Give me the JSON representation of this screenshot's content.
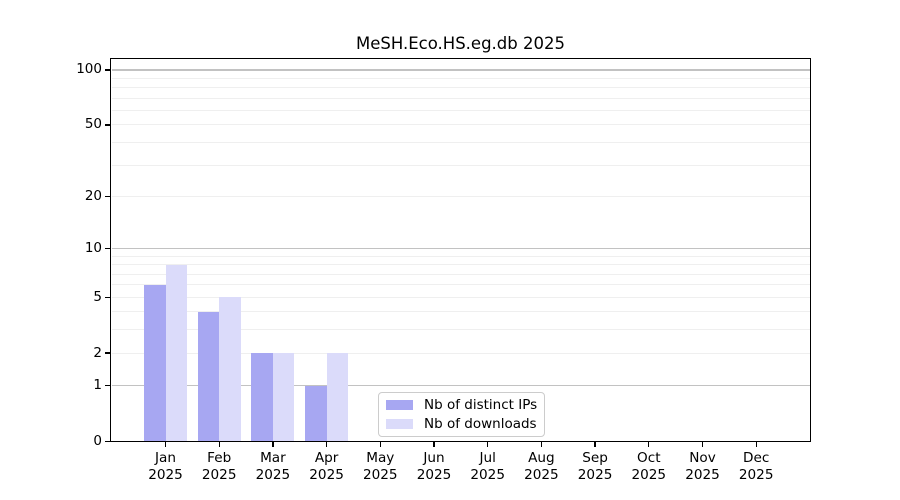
{
  "title": "MeSH.Eco.HS.eg.db 2025",
  "chart_data": {
    "type": "bar",
    "title": "MeSH.Eco.HS.eg.db 2025",
    "year": "2025",
    "categories": [
      "Jan",
      "Feb",
      "Mar",
      "Apr",
      "May",
      "Jun",
      "Jul",
      "Aug",
      "Sep",
      "Oct",
      "Nov",
      "Dec"
    ],
    "series": [
      {
        "name": "Nb of distinct IPs",
        "color": "#a7a7f2",
        "values": [
          6,
          4,
          2,
          1,
          0,
          0,
          0,
          0,
          0,
          0,
          0,
          0
        ]
      },
      {
        "name": "Nb of downloads",
        "color": "#dbdbfa",
        "values": [
          8,
          5,
          2,
          2,
          0,
          0,
          0,
          0,
          0,
          0,
          0,
          0
        ]
      }
    ],
    "xlabel": "",
    "ylabel": "",
    "y_scale": "log1p",
    "ylim": [
      0,
      115
    ],
    "y_ticks": [
      0,
      1,
      2,
      5,
      10,
      20,
      50,
      100
    ],
    "grid": {
      "on": true,
      "major": [
        1,
        10,
        100
      ],
      "minor": [
        2,
        3,
        4,
        5,
        6,
        7,
        8,
        9,
        20,
        30,
        40,
        50,
        60,
        70,
        80,
        90
      ],
      "major_color": "#c2c2c2",
      "minor_color": "#efefef"
    },
    "legend_position": "lower center inside plot",
    "axis_color": "#000000",
    "background_color": "#ffffff"
  }
}
